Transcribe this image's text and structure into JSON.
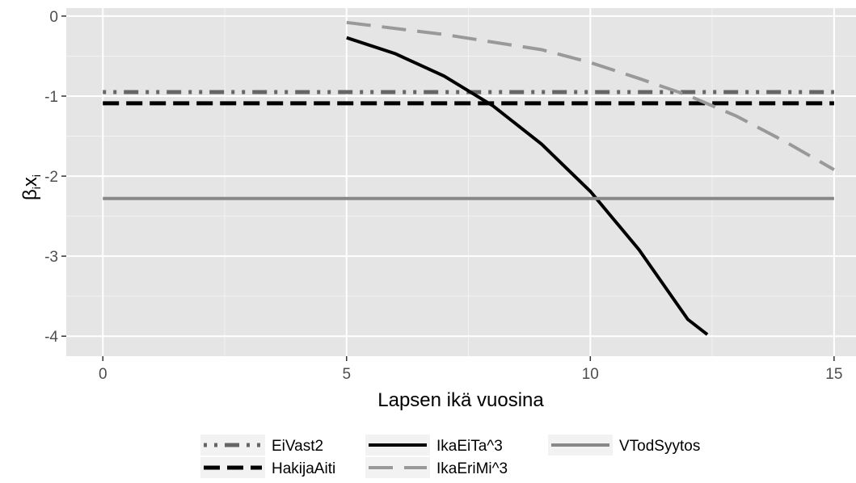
{
  "chart_data": {
    "type": "line",
    "xlabel": "Lapsen ikä vuosina",
    "ylabel_base": "β",
    "ylabel_sub1": "i",
    "ylabel_mid": "x",
    "ylabel_sub2": "i",
    "xlim": [
      -0.75,
      15.45
    ],
    "ylim": [
      -4.25,
      0.1
    ],
    "x_ticks": [
      0,
      5,
      10,
      15
    ],
    "y_ticks": [
      0,
      -1,
      -2,
      -3,
      -4
    ],
    "x_tick_labels": [
      "0",
      "5",
      "10",
      "15"
    ],
    "y_tick_labels": [
      "0",
      "-1",
      "-2",
      "-3",
      "-4"
    ],
    "grid": true,
    "legend_position": "bottom",
    "panel_color": "#e5e5e5",
    "series": [
      {
        "name": "EiVast2",
        "color": "#666666",
        "dash": "twodash",
        "x": [
          0,
          15
        ],
        "y": [
          -0.95,
          -0.95
        ]
      },
      {
        "name": "HakijaAiti",
        "color": "#000000",
        "dash": "dashed",
        "x": [
          0,
          15
        ],
        "y": [
          -1.09,
          -1.09
        ]
      },
      {
        "name": "IkaEiTa^3",
        "color": "#000000",
        "dash": "solid",
        "x": [
          5,
          6,
          7,
          8,
          9,
          10,
          11,
          12,
          12.4
        ],
        "y": [
          -0.27,
          -0.47,
          -0.75,
          -1.12,
          -1.6,
          -2.19,
          -2.92,
          -3.79,
          -3.98
        ]
      },
      {
        "name": "IkaEriMi^3",
        "color": "#999999",
        "dash": "longdash",
        "x": [
          5,
          7,
          9,
          10,
          11,
          12,
          13,
          14,
          15
        ],
        "y": [
          -0.08,
          -0.23,
          -0.42,
          -0.58,
          -0.78,
          -0.99,
          -1.25,
          -1.57,
          -1.92
        ]
      },
      {
        "name": "VTodSyytos",
        "color": "#888888",
        "dash": "solid",
        "x": [
          0,
          15
        ],
        "y": [
          -2.28,
          -2.28
        ]
      }
    ]
  }
}
